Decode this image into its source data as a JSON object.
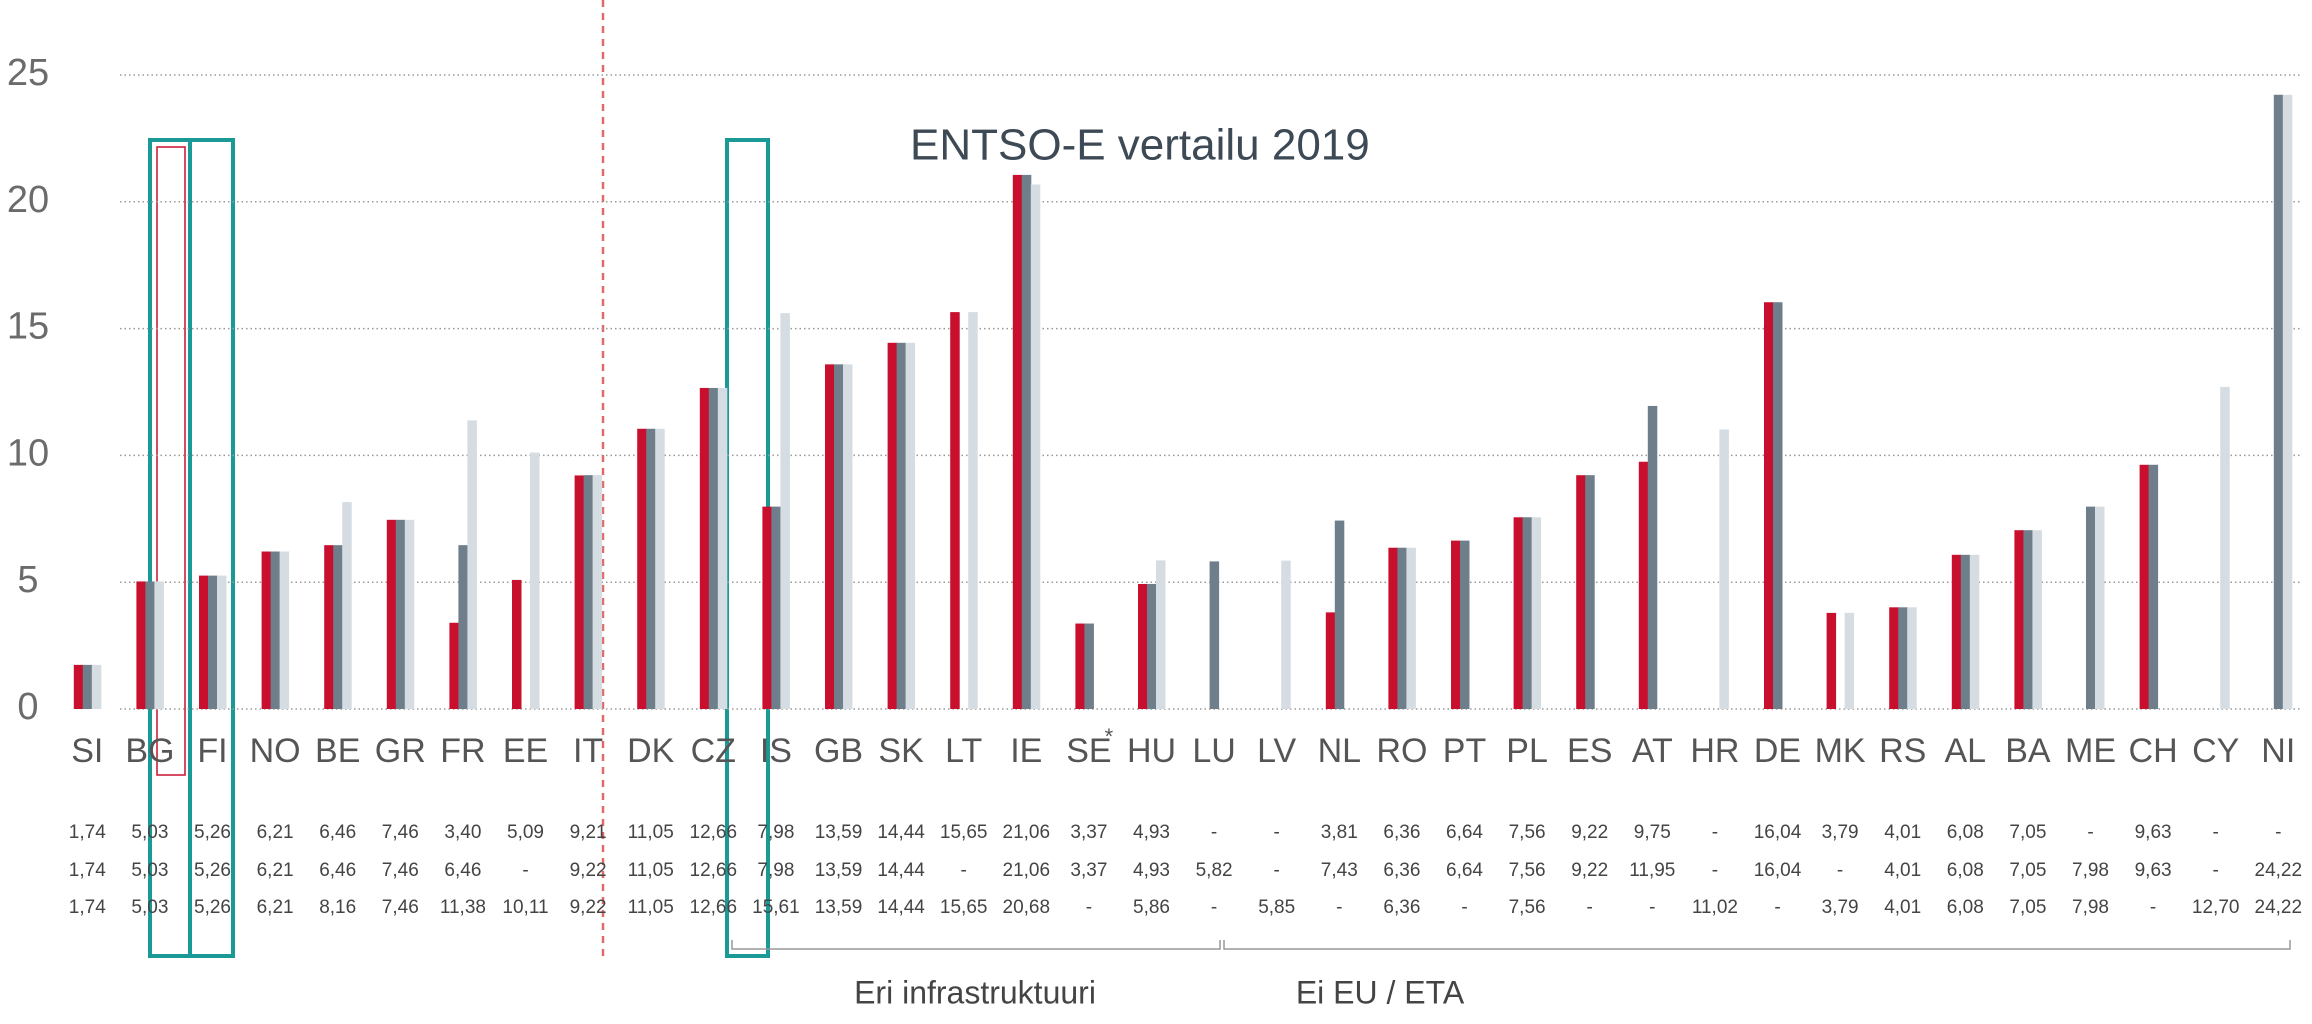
{
  "chart_data": {
    "type": "bar",
    "annotation": "ENTSO-E vertailu 2019",
    "category_note": "*",
    "groups": [
      "Eri infrastruktuuri",
      "Ei EU / ETA"
    ],
    "categories": [
      "SI",
      "BG",
      "FI",
      "NO",
      "BE",
      "GR",
      "FR",
      "EE",
      "IT",
      "DK",
      "CZ",
      "IS",
      "GB",
      "SK",
      "LT",
      "IE",
      "SE",
      "HU",
      "LU",
      "LV",
      "NL",
      "RO",
      "PT",
      "PL",
      "ES",
      "AT",
      "HR",
      "DE",
      "MK",
      "RS",
      "AL",
      "BA",
      "ME",
      "CH",
      "CY",
      "NI"
    ],
    "series": [
      {
        "color": "#c8102e",
        "values": [
          1.74,
          5.03,
          5.26,
          6.21,
          6.46,
          7.46,
          3.4,
          5.09,
          9.21,
          11.05,
          12.66,
          7.98,
          13.59,
          14.44,
          15.65,
          21.06,
          3.37,
          4.93,
          null,
          null,
          3.81,
          6.36,
          6.64,
          7.56,
          9.22,
          9.75,
          null,
          16.04,
          3.79,
          4.01,
          6.08,
          7.05,
          null,
          9.63,
          null,
          null
        ],
        "value_labels": [
          "1,74",
          "5,03",
          "5,26",
          "6,21",
          "6,46",
          "7,46",
          "3,40",
          "5,09",
          "9,21",
          "11,05",
          "12,66",
          "7,98",
          "13,59",
          "14,44",
          "15,65",
          "21,06",
          "3,37",
          "4,93",
          "-",
          "-",
          "3,81",
          "6,36",
          "6,64",
          "7,56",
          "9,22",
          "9,75",
          "-",
          "16,04",
          "3,79",
          "4,01",
          "6,08",
          "7,05",
          "-",
          "9,63",
          "-",
          "-"
        ]
      },
      {
        "color": "#6e7e8a",
        "values": [
          1.74,
          5.03,
          5.26,
          6.21,
          6.46,
          7.46,
          6.46,
          null,
          9.22,
          11.05,
          12.66,
          7.98,
          13.59,
          14.44,
          null,
          21.06,
          3.37,
          4.93,
          5.82,
          null,
          7.43,
          6.36,
          6.64,
          7.56,
          9.22,
          11.95,
          null,
          16.04,
          null,
          4.01,
          6.08,
          7.05,
          7.98,
          9.63,
          null,
          24.22
        ],
        "value_labels": [
          "1,74",
          "5,03",
          "5,26",
          "6,21",
          "6,46",
          "7,46",
          "6,46",
          "-",
          "9,22",
          "11,05",
          "12,66",
          "7,98",
          "13,59",
          "14,44",
          "-",
          "21,06",
          "3,37",
          "4,93",
          "5,82",
          "-",
          "7,43",
          "6,36",
          "6,64",
          "7,56",
          "9,22",
          "11,95",
          "-",
          "16,04",
          "-",
          "4,01",
          "6,08",
          "7,05",
          "7,98",
          "9,63",
          "-",
          "24,22"
        ]
      },
      {
        "color": "#d5dce2",
        "values": [
          1.74,
          5.03,
          5.26,
          6.21,
          8.16,
          7.46,
          11.38,
          10.11,
          9.22,
          11.05,
          12.66,
          15.61,
          13.59,
          14.44,
          15.65,
          20.68,
          null,
          5.86,
          null,
          5.85,
          null,
          6.36,
          null,
          7.56,
          null,
          null,
          11.02,
          null,
          3.79,
          4.01,
          6.08,
          7.05,
          7.98,
          null,
          12.7,
          24.22
        ],
        "value_labels": [
          "1,74",
          "5,03",
          "5,26",
          "6,21",
          "8,16",
          "7,46",
          "11,38",
          "10,11",
          "9,22",
          "11,05",
          "12,66",
          "15,61",
          "13,59",
          "14,44",
          "15,65",
          "20,68",
          "-",
          "5,86",
          "-",
          "5,85",
          "-",
          "6,36",
          "-",
          "7,56",
          "-",
          "-",
          "11,02",
          "-",
          "3,79",
          "4,01",
          "6,08",
          "7,05",
          "7,98",
          "-",
          "12,70",
          "24,22"
        ]
      }
    ],
    "ylim": [
      0,
      25
    ],
    "yticks": [
      0,
      5,
      10,
      15,
      20,
      25
    ],
    "grid": true
  }
}
